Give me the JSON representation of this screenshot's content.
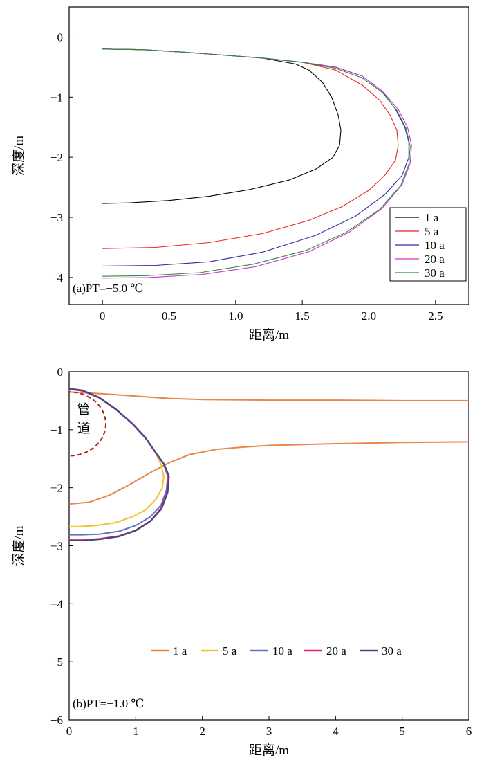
{
  "chart_data": [
    {
      "type": "line",
      "panel_label": "(a)",
      "condition": "PT=−5.0 ℃",
      "xlabel": "距离/m",
      "ylabel": "深度/m",
      "xlim": [
        -0.25,
        2.75
      ],
      "ylim": [
        -4.45,
        0.5
      ],
      "xticks": [
        0,
        0.5,
        1.0,
        1.5,
        2.0,
        2.5
      ],
      "xtick_labels": [
        "0",
        "0.5",
        "1.0",
        "1.5",
        "2.0",
        "2.5"
      ],
      "yticks": [
        0,
        -1,
        -2,
        -3,
        -4
      ],
      "ytick_labels": [
        "0",
        "−1",
        "−2",
        "−3",
        "−4"
      ],
      "grid": false,
      "legend_position": "bottom-right",
      "series": [
        {
          "name": "1 a",
          "color": "#000000",
          "x": [
            0,
            0.3,
            0.6,
            0.9,
            1.2,
            1.45,
            1.55,
            1.65,
            1.72,
            1.77,
            1.79,
            1.78,
            1.73,
            1.6,
            1.4,
            1.1,
            0.8,
            0.5,
            0.2,
            0
          ],
          "y": [
            -0.2,
            -0.21,
            -0.25,
            -0.3,
            -0.35,
            -0.45,
            -0.55,
            -0.75,
            -1.0,
            -1.3,
            -1.55,
            -1.8,
            -2.0,
            -2.2,
            -2.38,
            -2.54,
            -2.65,
            -2.72,
            -2.76,
            -2.77
          ]
        },
        {
          "name": "5 a",
          "color": "#ee2222",
          "x": [
            0,
            0.3,
            0.6,
            0.9,
            1.2,
            1.5,
            1.75,
            1.95,
            2.08,
            2.16,
            2.21,
            2.22,
            2.2,
            2.12,
            2.0,
            1.8,
            1.55,
            1.2,
            0.8,
            0.4,
            0
          ],
          "y": [
            -0.2,
            -0.21,
            -0.25,
            -0.3,
            -0.35,
            -0.42,
            -0.55,
            -0.8,
            -1.05,
            -1.3,
            -1.55,
            -1.8,
            -2.05,
            -2.3,
            -2.55,
            -2.82,
            -3.05,
            -3.27,
            -3.42,
            -3.5,
            -3.52
          ]
        },
        {
          "name": "10 a",
          "color": "#2a2ab0",
          "x": [
            0,
            0.3,
            0.6,
            0.9,
            1.2,
            1.5,
            1.75,
            1.95,
            2.1,
            2.2,
            2.27,
            2.3,
            2.3,
            2.25,
            2.12,
            1.9,
            1.6,
            1.2,
            0.8,
            0.4,
            0
          ],
          "y": [
            -0.2,
            -0.21,
            -0.25,
            -0.3,
            -0.35,
            -0.42,
            -0.5,
            -0.65,
            -0.9,
            -1.2,
            -1.5,
            -1.75,
            -2.0,
            -2.3,
            -2.62,
            -2.98,
            -3.3,
            -3.58,
            -3.74,
            -3.8,
            -3.81
          ]
        },
        {
          "name": "20 a",
          "color": "#cc33cc",
          "x": [
            0,
            0.3,
            0.6,
            0.9,
            1.2,
            1.5,
            1.75,
            1.95,
            2.1,
            2.22,
            2.29,
            2.32,
            2.31,
            2.25,
            2.1,
            1.85,
            1.55,
            1.15,
            0.75,
            0.35,
            0
          ],
          "y": [
            -0.2,
            -0.21,
            -0.25,
            -0.3,
            -0.35,
            -0.42,
            -0.5,
            -0.65,
            -0.9,
            -1.2,
            -1.5,
            -1.8,
            -2.1,
            -2.45,
            -2.85,
            -3.25,
            -3.57,
            -3.82,
            -3.95,
            -4.0,
            -4.01
          ]
        },
        {
          "name": "30 a",
          "color": "#2e8b3a",
          "x": [
            0,
            0.3,
            0.6,
            0.9,
            1.2,
            1.5,
            1.75,
            1.95,
            2.1,
            2.21,
            2.28,
            2.31,
            2.3,
            2.24,
            2.08,
            1.83,
            1.53,
            1.13,
            0.73,
            0.33,
            0
          ],
          "y": [
            -0.2,
            -0.21,
            -0.25,
            -0.3,
            -0.35,
            -0.42,
            -0.52,
            -0.68,
            -0.92,
            -1.22,
            -1.52,
            -1.82,
            -2.12,
            -2.47,
            -2.87,
            -3.25,
            -3.55,
            -3.78,
            -3.92,
            -3.97,
            -3.98
          ]
        }
      ]
    },
    {
      "type": "line",
      "panel_label": "(b)",
      "condition": "PT=−1.0 ℃",
      "xlabel": "距离/m",
      "ylabel": "深度/m",
      "xlim": [
        0,
        6
      ],
      "ylim": [
        -6,
        0
      ],
      "xticks": [
        0,
        1,
        2,
        3,
        4,
        5,
        6
      ],
      "xtick_labels": [
        "0",
        "1",
        "2",
        "3",
        "4",
        "5",
        "6"
      ],
      "yticks": [
        0,
        -1,
        -2,
        -3,
        -4,
        -5,
        -6
      ],
      "ytick_labels": [
        "0",
        "−1",
        "−2",
        "−3",
        "−4",
        "−5",
        "−6"
      ],
      "grid": false,
      "legend_position": "bottom-center, horizontal",
      "annotation": "管道",
      "pipe_outline": {
        "color": "#aa2222",
        "center": [
          0,
          -0.9
        ],
        "radius_x": 0.55,
        "radius_y": 0.55
      },
      "series": [
        {
          "name": "1 a",
          "color": "#e8864a",
          "segments": [
            {
              "x": [
                0,
                0.5,
                1.0,
                1.5,
                2.0,
                3.0,
                4.0,
                5.0,
                6.0
              ],
              "y": [
                -0.35,
                -0.38,
                -0.42,
                -0.46,
                -0.48,
                -0.49,
                -0.49,
                -0.5,
                -0.5
              ]
            },
            {
              "x": [
                0,
                0.3,
                0.6,
                0.9,
                1.2,
                1.5,
                1.8,
                2.2,
                2.6,
                3.0,
                4.0,
                5.0,
                6.0
              ],
              "y": [
                -2.28,
                -2.25,
                -2.13,
                -1.95,
                -1.75,
                -1.57,
                -1.43,
                -1.34,
                -1.3,
                -1.27,
                -1.24,
                -1.22,
                -1.21
              ]
            }
          ]
        },
        {
          "name": "5 a",
          "color": "#f2c230",
          "x": [
            0,
            0.2,
            0.45,
            0.7,
            0.95,
            1.15,
            1.3,
            1.38,
            1.42,
            1.4,
            1.3,
            1.15,
            0.95,
            0.7,
            0.4,
            0.15,
            0
          ],
          "y": [
            -0.3,
            -0.33,
            -0.45,
            -0.65,
            -0.9,
            -1.15,
            -1.4,
            -1.6,
            -1.8,
            -2.0,
            -2.2,
            -2.38,
            -2.5,
            -2.6,
            -2.65,
            -2.67,
            -2.67
          ]
        },
        {
          "name": "10 a",
          "color": "#5a74c0",
          "x": [
            0,
            0.2,
            0.45,
            0.7,
            0.95,
            1.15,
            1.3,
            1.42,
            1.48,
            1.46,
            1.38,
            1.22,
            1.0,
            0.75,
            0.45,
            0.2,
            0
          ],
          "y": [
            -0.3,
            -0.33,
            -0.45,
            -0.65,
            -0.9,
            -1.15,
            -1.4,
            -1.6,
            -1.8,
            -2.05,
            -2.3,
            -2.5,
            -2.65,
            -2.75,
            -2.8,
            -2.81,
            -2.81
          ]
        },
        {
          "name": "20 a",
          "color": "#e0237a",
          "x": [
            0,
            0.2,
            0.45,
            0.7,
            0.95,
            1.15,
            1.3,
            1.43,
            1.49,
            1.47,
            1.38,
            1.22,
            1.0,
            0.75,
            0.45,
            0.2,
            0
          ],
          "y": [
            -0.3,
            -0.33,
            -0.45,
            -0.65,
            -0.9,
            -1.15,
            -1.4,
            -1.6,
            -1.8,
            -2.07,
            -2.35,
            -2.57,
            -2.73,
            -2.83,
            -2.88,
            -2.9,
            -2.9
          ]
        },
        {
          "name": "30 a",
          "color": "#3a4a80",
          "x": [
            0,
            0.2,
            0.45,
            0.7,
            0.95,
            1.15,
            1.3,
            1.43,
            1.5,
            1.48,
            1.39,
            1.22,
            1.0,
            0.75,
            0.45,
            0.2,
            0
          ],
          "y": [
            -0.29,
            -0.32,
            -0.44,
            -0.64,
            -0.89,
            -1.14,
            -1.39,
            -1.6,
            -1.8,
            -2.08,
            -2.36,
            -2.58,
            -2.74,
            -2.84,
            -2.89,
            -2.91,
            -2.91
          ]
        }
      ]
    }
  ]
}
